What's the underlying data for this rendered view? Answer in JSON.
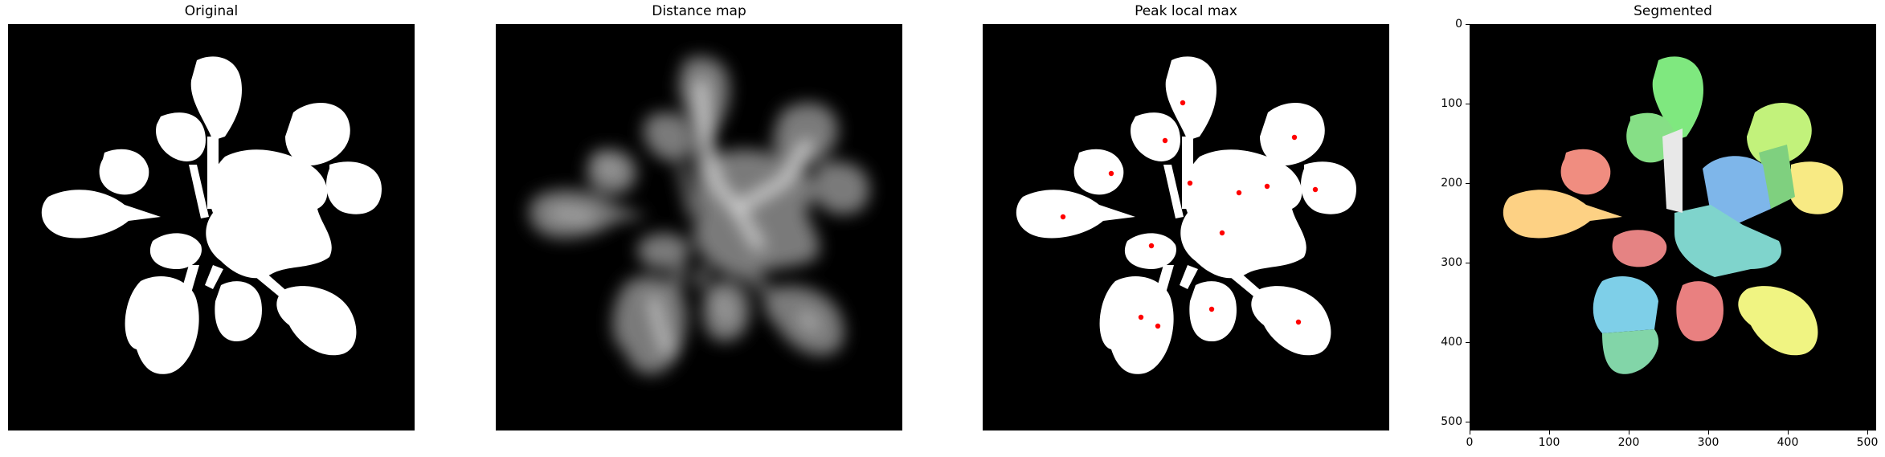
{
  "panels": [
    {
      "title": "Original"
    },
    {
      "title": "Distance map"
    },
    {
      "title": "Peak local max"
    },
    {
      "title": "Segmented"
    }
  ],
  "segmented_axes": {
    "yticks": [
      "0",
      "100",
      "200",
      "300",
      "400",
      "500"
    ],
    "xticks": [
      "0",
      "100",
      "200",
      "300",
      "400",
      "500"
    ]
  },
  "peaks": [
    [
      249,
      98
    ],
    [
      227,
      145
    ],
    [
      160,
      186
    ],
    [
      258,
      198
    ],
    [
      319,
      210
    ],
    [
      354,
      202
    ],
    [
      414,
      206
    ],
    [
      388,
      141
    ],
    [
      100,
      240
    ],
    [
      210,
      276
    ],
    [
      298,
      260
    ],
    [
      197,
      365
    ],
    [
      218,
      376
    ],
    [
      285,
      355
    ],
    [
      393,
      371
    ]
  ],
  "colors": {
    "leaf": "#ffffff",
    "background": "#000000",
    "peak": "#ff0000"
  }
}
